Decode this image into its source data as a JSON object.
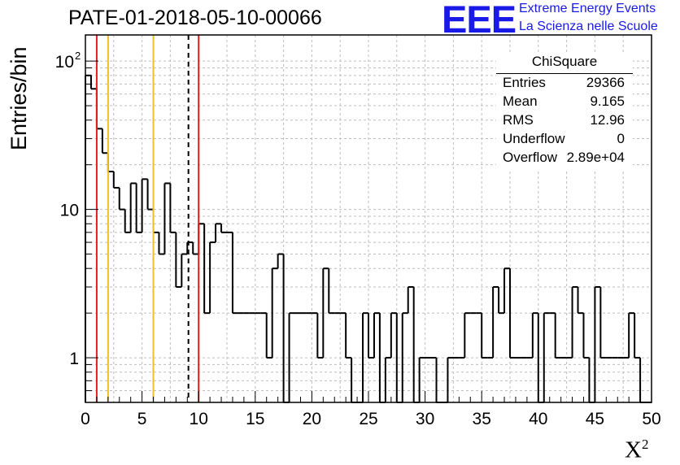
{
  "title": "PATE-01-2018-05-10-00066",
  "logo": {
    "mark": "EEE",
    "line1": "Extreme Energy Events",
    "line2": "La Scienza nelle Scuole",
    "color": "#1a1ae6"
  },
  "stats": {
    "title": "ChiSquare",
    "rows": [
      {
        "key": "Entries",
        "value": "29366"
      },
      {
        "key": "Mean",
        "value": "9.165"
      },
      {
        "key": "RMS",
        "value": "12.96"
      },
      {
        "key": "Underflow",
        "value": "0"
      },
      {
        "key": "Overflow",
        "value": "2.89e+04"
      }
    ]
  },
  "chart_data": {
    "type": "histogram",
    "ylabel": "Entries/bin",
    "xlabel": "X",
    "xlabel_sup": "2",
    "xlim": [
      0,
      50
    ],
    "ylim": [
      0.5,
      150
    ],
    "yscale": "log",
    "grid": true,
    "bin_width": 0.5,
    "x_ticks": [
      "0",
      "5",
      "10",
      "15",
      "20",
      "25",
      "30",
      "35",
      "40",
      "45",
      "50"
    ],
    "y_ticks": [
      {
        "value": 1,
        "label": "1"
      },
      {
        "value": 10,
        "label": "10"
      },
      {
        "value": 100,
        "label": "10",
        "sup": "2"
      }
    ],
    "values": [
      80,
      65,
      35,
      24,
      18,
      14,
      10,
      7,
      15,
      7,
      16,
      10,
      7,
      5,
      15,
      7,
      3,
      5,
      6,
      5,
      8,
      2,
      6,
      8,
      7,
      7,
      2,
      2,
      2,
      2,
      2,
      2,
      1,
      4,
      5,
      0,
      2,
      2,
      2,
      2,
      2,
      1,
      4,
      2,
      2,
      2,
      1,
      0,
      0,
      2,
      1,
      2,
      0,
      1,
      2,
      0,
      2,
      3,
      0,
      1,
      1,
      1,
      0,
      0,
      1,
      1,
      1,
      2,
      2,
      2,
      1,
      1,
      3,
      2,
      4,
      1,
      1,
      1,
      1,
      2,
      0,
      2,
      2,
      1,
      1,
      1,
      3,
      2,
      1,
      0,
      3,
      1,
      1,
      1,
      1,
      1,
      2,
      1,
      0,
      0
    ],
    "markers": [
      {
        "x": 1.0,
        "color": "#e02020",
        "style": "solid"
      },
      {
        "x": 2.0,
        "color": "#f0c020",
        "style": "solid"
      },
      {
        "x": 6.0,
        "color": "#f0c020",
        "style": "solid"
      },
      {
        "x": 9.1,
        "color": "#000000",
        "style": "dashed"
      },
      {
        "x": 10.0,
        "color": "#e02020",
        "style": "solid"
      }
    ]
  }
}
